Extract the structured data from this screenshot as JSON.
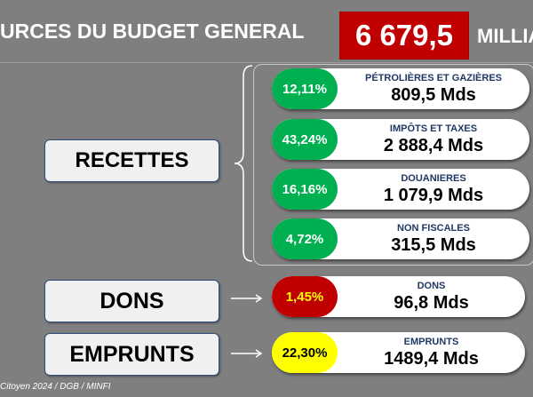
{
  "header": {
    "title": "URCES  DU BUDGET GENERAL",
    "total": "6 679,5",
    "unit": "MILLIA"
  },
  "categories": {
    "recettes": "RECETTES",
    "dons": "DONS",
    "emprunts": "EMPRUNTS"
  },
  "recettes_items": [
    {
      "pct": "12,11%",
      "label": "PÉTROLIÈRES ET GAZIÈRES",
      "value": "809,5 Mds"
    },
    {
      "pct": "43,24%",
      "label": "IMPÔTS ET TAXES",
      "value": "2 888,4 Mds"
    },
    {
      "pct": "16,16%",
      "label": "DOUANIERES",
      "value": "1 079,9 Mds"
    },
    {
      "pct": "4,72%",
      "label": "NON FISCALES",
      "value": "315,5 Mds"
    }
  ],
  "dons_item": {
    "pct": "1,45%",
    "label": "DONS",
    "value": "96,8 Mds"
  },
  "emprunts_item": {
    "pct": "22,30%",
    "label": "EMPRUNTS",
    "value": "1489,4 Mds"
  },
  "footer": "Citoyen 2024 / DGB / MINFI",
  "colors": {
    "green": "#00b050",
    "red": "#c00000",
    "yellow": "#ffff00",
    "background": "#7f7f7f"
  }
}
